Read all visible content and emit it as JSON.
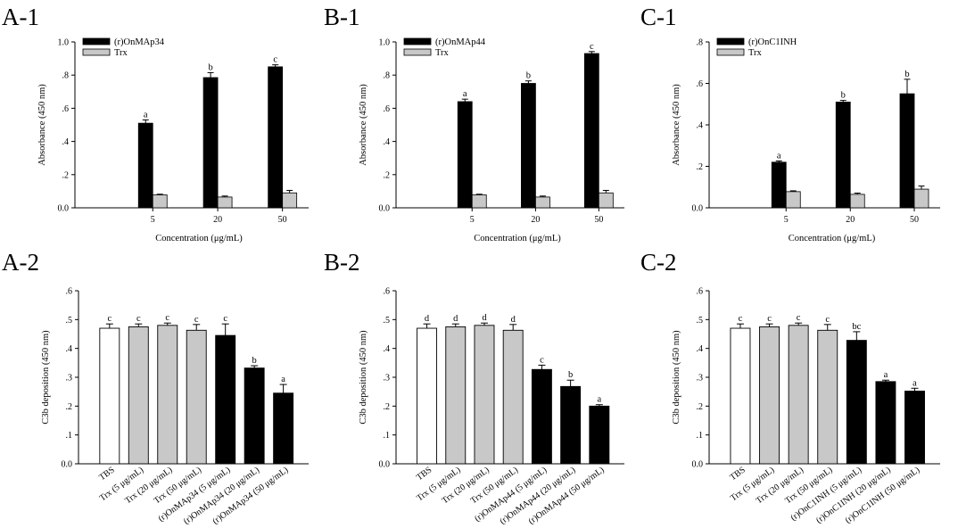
{
  "chart_data": [
    {
      "id": "A-1",
      "type": "bar",
      "panel_label": "A-1",
      "ylabel": "Absorbance (450 nm)",
      "xlabel": "Concentration (μg/mL)",
      "ylim": [
        0,
        1.0
      ],
      "yticks": [
        "0.0",
        ".2",
        ".4",
        ".6",
        ".8",
        "1.0"
      ],
      "categories": [
        "5",
        "20",
        "50"
      ],
      "legend_position": "top-left",
      "series": [
        {
          "name": "(r)OnMAp34",
          "color": "#000000",
          "values": [
            0.51,
            0.785,
            0.85
          ],
          "errors": [
            0.02,
            0.03,
            0.012
          ],
          "letters": [
            "a",
            "b",
            "c"
          ]
        },
        {
          "name": "Trx",
          "color": "#c8c8c8",
          "values": [
            0.078,
            0.065,
            0.09
          ],
          "errors": [
            0.004,
            0.006,
            0.015
          ],
          "letters": [
            "",
            "",
            ""
          ]
        }
      ]
    },
    {
      "id": "B-1",
      "type": "bar",
      "panel_label": "B-1",
      "ylabel": "Absorbance (450 nm)",
      "xlabel": "Concentration (μg/mL)",
      "ylim": [
        0,
        1.0
      ],
      "yticks": [
        "0.0",
        ".2",
        ".4",
        ".6",
        ".8",
        "1.0"
      ],
      "categories": [
        "5",
        "20",
        "50"
      ],
      "legend_position": "top-left",
      "series": [
        {
          "name": "(r)OnMAp44",
          "color": "#000000",
          "values": [
            0.64,
            0.75,
            0.93
          ],
          "errors": [
            0.015,
            0.015,
            0.012
          ],
          "letters": [
            "a",
            "b",
            "c"
          ]
        },
        {
          "name": "Trx",
          "color": "#c8c8c8",
          "values": [
            0.078,
            0.065,
            0.09
          ],
          "errors": [
            0.004,
            0.006,
            0.015
          ],
          "letters": [
            "",
            "",
            ""
          ]
        }
      ]
    },
    {
      "id": "C-1",
      "type": "bar",
      "panel_label": "C-1",
      "ylabel": "Absorbance (450 nm)",
      "xlabel": "Concentration (μg/mL)",
      "ylim": [
        0,
        0.8
      ],
      "yticks": [
        "0.0",
        ".2",
        ".4",
        ".6",
        ".8"
      ],
      "categories": [
        "5",
        "20",
        "50"
      ],
      "legend_position": "top-left",
      "series": [
        {
          "name": "(r)OnC1INH",
          "color": "#000000",
          "values": [
            0.22,
            0.51,
            0.55
          ],
          "errors": [
            0.006,
            0.008,
            0.07
          ],
          "letters": [
            "a",
            "b",
            "b"
          ]
        },
        {
          "name": "Trx",
          "color": "#c8c8c8",
          "values": [
            0.078,
            0.065,
            0.09
          ],
          "errors": [
            0.004,
            0.006,
            0.015
          ],
          "letters": [
            "",
            "",
            ""
          ]
        }
      ]
    },
    {
      "id": "A-2",
      "type": "bar",
      "panel_label": "A-2",
      "ylabel": "C3b deposition (450 nm)",
      "xlabel": "",
      "ylim": [
        0,
        0.6
      ],
      "yticks": [
        "0.0",
        ".1",
        ".2",
        ".3",
        ".4",
        ".5",
        ".6"
      ],
      "categories": [
        "TBS",
        "Trx (5 μg/mL)",
        "Trx (20 μg/mL)",
        "Trx (50 μg/mL)",
        "(r)OnMAp34 (5 μg/mL)",
        "(r)OnMAp34 (20 μg/mL)",
        "(r)OnMAp34 (50 μg/mL)"
      ],
      "values": [
        0.47,
        0.475,
        0.48,
        0.463,
        0.445,
        0.332,
        0.245
      ],
      "errors": [
        0.015,
        0.01,
        0.008,
        0.02,
        0.04,
        0.008,
        0.03
      ],
      "colors": [
        "#ffffff",
        "#c8c8c8",
        "#c8c8c8",
        "#c8c8c8",
        "#000000",
        "#000000",
        "#000000"
      ],
      "letters": [
        "c",
        "c",
        "c",
        "c",
        "c",
        "b",
        "a"
      ]
    },
    {
      "id": "B-2",
      "type": "bar",
      "panel_label": "B-2",
      "ylabel": "C3b deposition (450 nm)",
      "xlabel": "",
      "ylim": [
        0,
        0.6
      ],
      "yticks": [
        "0.0",
        ".1",
        ".2",
        ".3",
        ".4",
        ".5",
        ".6"
      ],
      "categories": [
        "TBS",
        "Trx (5 μg/mL)",
        "Trx (20 μg/mL)",
        "Trx (50 μg/mL)",
        "(r)OnMAp44 (5 μg/mL)",
        "(r)OnMAp44 (20 μg/mL)",
        "(r)OnMAp44 (50 μg/mL)"
      ],
      "values": [
        0.47,
        0.475,
        0.48,
        0.463,
        0.327,
        0.268,
        0.2
      ],
      "errors": [
        0.015,
        0.01,
        0.008,
        0.02,
        0.015,
        0.022,
        0.005
      ],
      "colors": [
        "#ffffff",
        "#c8c8c8",
        "#c8c8c8",
        "#c8c8c8",
        "#000000",
        "#000000",
        "#000000"
      ],
      "letters": [
        "d",
        "d",
        "d",
        "d",
        "c",
        "b",
        "a"
      ]
    },
    {
      "id": "C-2",
      "type": "bar",
      "panel_label": "C-2",
      "ylabel": "C3b deposition (450 nm)",
      "xlabel": "",
      "ylim": [
        0,
        0.6
      ],
      "yticks": [
        "0.0",
        ".1",
        ".2",
        ".3",
        ".4",
        ".5",
        ".6"
      ],
      "categories": [
        "TBS",
        "Trx (5 μg/mL)",
        "Trx (20 μg/mL)",
        "Trx (50 μg/mL)",
        "(r)OnC1INH (5 μg/mL)",
        "(r)OnC1INH (20 μg/mL)",
        "(r)OnC1INH (50 μg/mL)"
      ],
      "values": [
        0.47,
        0.475,
        0.48,
        0.463,
        0.428,
        0.285,
        0.252
      ],
      "errors": [
        0.015,
        0.01,
        0.008,
        0.02,
        0.03,
        0.005,
        0.01
      ],
      "colors": [
        "#ffffff",
        "#c8c8c8",
        "#c8c8c8",
        "#c8c8c8",
        "#000000",
        "#000000",
        "#000000"
      ],
      "letters": [
        "c",
        "c",
        "c",
        "c",
        "bc",
        "a",
        "a"
      ]
    }
  ]
}
